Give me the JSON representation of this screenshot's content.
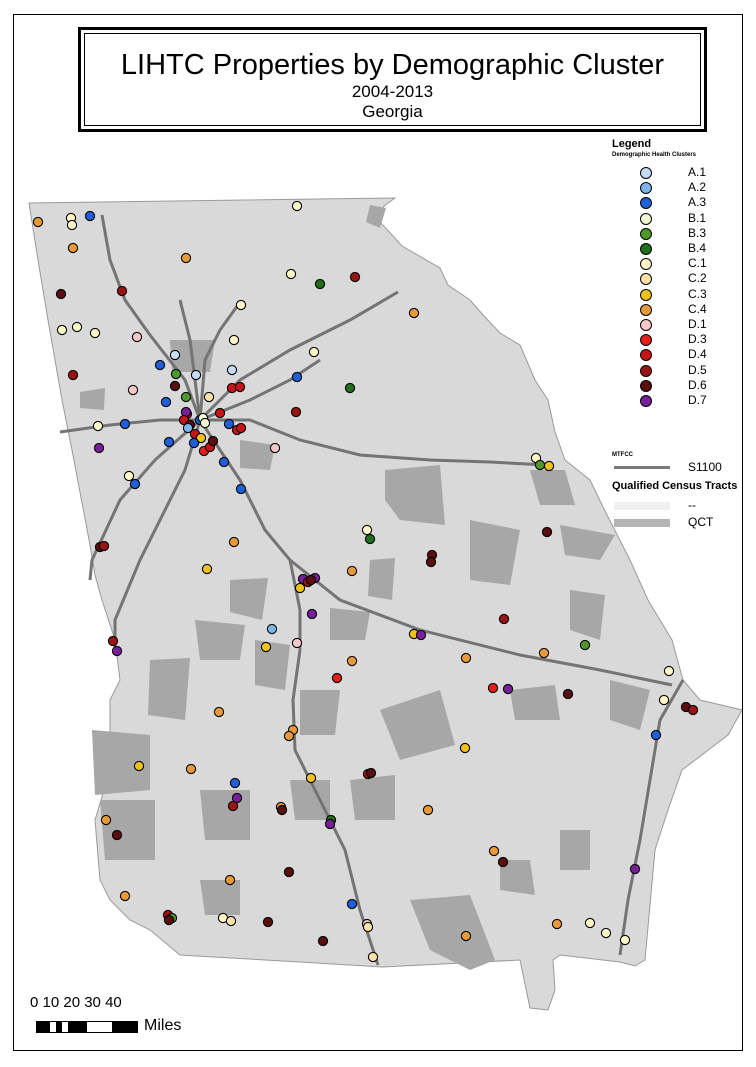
{
  "title": "LIHTC Properties by Demographic Cluster",
  "subtitle": "2004-2013",
  "region": "Georgia",
  "legend": {
    "title": "Legend",
    "subtitle": "Demographic Health Clusters",
    "items": [
      {
        "label": "A.1",
        "color": "#c6dbf5"
      },
      {
        "label": "A.2",
        "color": "#7fb4ea"
      },
      {
        "label": "A.3",
        "color": "#1f5fd8"
      },
      {
        "label": "B.1",
        "color": "#f2f8d2"
      },
      {
        "label": "B.3",
        "color": "#4d9a2a"
      },
      {
        "label": "B.4",
        "color": "#1f6f1d"
      },
      {
        "label": "C.1",
        "color": "#fff7c8"
      },
      {
        "label": "C.2",
        "color": "#fde2a8"
      },
      {
        "label": "C.3",
        "color": "#f0c21d"
      },
      {
        "label": "C.4",
        "color": "#e89a3a"
      },
      {
        "label": "D.1",
        "color": "#f8c8c8"
      },
      {
        "label": "D.3",
        "color": "#e0201c"
      },
      {
        "label": "D.4",
        "color": "#c81418"
      },
      {
        "label": "D.5",
        "color": "#9a1414"
      },
      {
        "label": "D.6",
        "color": "#5a0f10"
      },
      {
        "label": "D.7",
        "color": "#7a1f9a"
      }
    ],
    "mtfcc_label": "MTFCC",
    "road_label": "S1100",
    "qct_title": "Qualified Census Tracts",
    "qct_none_label": "--",
    "qct_label": "QCT"
  },
  "scale": {
    "ticks": "0  10 20 30 40",
    "unit": "Miles"
  },
  "colors": {
    "state_fill": "#d9d9d9",
    "qct_fill": "#a7a7a7",
    "road": "#747474"
  },
  "properties": [
    [
      "C.4",
      38,
      222
    ],
    [
      "C.1",
      71,
      218
    ],
    [
      "C.1",
      72,
      225
    ],
    [
      "A.3",
      90,
      216
    ],
    [
      "C.1",
      297,
      206
    ],
    [
      "C.4",
      73,
      248
    ],
    [
      "C.4",
      186,
      258
    ],
    [
      "C.1",
      291,
      274
    ],
    [
      "B.4",
      320,
      284
    ],
    [
      "D.5",
      355,
      277
    ],
    [
      "D.6",
      61,
      294
    ],
    [
      "D.5",
      122,
      291
    ],
    [
      "C.1",
      241,
      305
    ],
    [
      "C.4",
      414,
      313
    ],
    [
      "C.1",
      62,
      330
    ],
    [
      "C.1",
      77,
      327
    ],
    [
      "C.1",
      95,
      333
    ],
    [
      "D.1",
      137,
      337
    ],
    [
      "C.1",
      234,
      340
    ],
    [
      "C.1",
      314,
      352
    ],
    [
      "A.1",
      175,
      355
    ],
    [
      "A.3",
      160,
      365
    ],
    [
      "A.1",
      196,
      375
    ],
    [
      "A.1",
      232,
      370
    ],
    [
      "A.3",
      297,
      377
    ],
    [
      "D.5",
      73,
      375
    ],
    [
      "B.3",
      176,
      374
    ],
    [
      "D.6",
      175,
      386
    ],
    [
      "D.4",
      232,
      388
    ],
    [
      "D.4",
      240,
      387
    ],
    [
      "B.4",
      350,
      388
    ],
    [
      "D.1",
      133,
      390
    ],
    [
      "A.3",
      166,
      402
    ],
    [
      "B.3",
      186,
      397
    ],
    [
      "C.2",
      209,
      397
    ],
    [
      "D.5",
      296,
      412
    ],
    [
      "D.4",
      187,
      414
    ],
    [
      "D.7",
      186,
      412
    ],
    [
      "A.3",
      200,
      420
    ],
    [
      "D.4",
      220,
      413
    ],
    [
      "B.1",
      203,
      418
    ],
    [
      "D.4",
      184,
      420
    ],
    [
      "D.6",
      190,
      425
    ],
    [
      "B.1",
      205,
      423
    ],
    [
      "C.1",
      98,
      426
    ],
    [
      "A.3",
      125,
      424
    ],
    [
      "A.3",
      229,
      424
    ],
    [
      "D.4",
      237,
      430
    ],
    [
      "D.4",
      241,
      428
    ],
    [
      "A.2",
      188,
      428
    ],
    [
      "A.3",
      169,
      442
    ],
    [
      "D.4",
      195,
      434
    ],
    [
      "C.3",
      201,
      438
    ],
    [
      "D.3",
      204,
      451
    ],
    [
      "D.4",
      210,
      447
    ],
    [
      "A.3",
      194,
      443
    ],
    [
      "D.6",
      213,
      441
    ],
    [
      "D.1",
      275,
      448
    ],
    [
      "D.7",
      99,
      448
    ],
    [
      "A.3",
      224,
      462
    ],
    [
      "C.1",
      129,
      476
    ],
    [
      "A.3",
      135,
      484
    ],
    [
      "A.3",
      241,
      489
    ],
    [
      "C.1",
      536,
      458
    ],
    [
      "B.3",
      540,
      465
    ],
    [
      "C.3",
      549,
      466
    ],
    [
      "C.1",
      367,
      530
    ],
    [
      "B.4",
      370,
      539
    ],
    [
      "D.6",
      547,
      532
    ],
    [
      "D.6",
      100,
      547
    ],
    [
      "D.5",
      104,
      546
    ],
    [
      "C.4",
      234,
      542
    ],
    [
      "D.6",
      432,
      555
    ],
    [
      "D.6",
      431,
      562
    ],
    [
      "C.3",
      207,
      569
    ],
    [
      "C.4",
      352,
      571
    ],
    [
      "D.7",
      303,
      579
    ],
    [
      "D.5",
      308,
      582
    ],
    [
      "D.7",
      315,
      578
    ],
    [
      "D.6",
      311,
      580
    ],
    [
      "C.3",
      300,
      588
    ],
    [
      "D.7",
      312,
      614
    ],
    [
      "D.5",
      504,
      619
    ],
    [
      "A.2",
      272,
      629
    ],
    [
      "C.3",
      266,
      647
    ],
    [
      "D.1",
      297,
      643
    ],
    [
      "C.3",
      414,
      634
    ],
    [
      "D.7",
      421,
      635
    ],
    [
      "B.3",
      585,
      645
    ],
    [
      "D.7",
      117,
      651
    ],
    [
      "D.5",
      113,
      641
    ],
    [
      "C.4",
      466,
      658
    ],
    [
      "C.4",
      544,
      653
    ],
    [
      "C.4",
      352,
      661
    ],
    [
      "C.1",
      669,
      671
    ],
    [
      "D.3",
      337,
      678
    ],
    [
      "D.3",
      493,
      688
    ],
    [
      "D.7",
      508,
      689
    ],
    [
      "D.6",
      568,
      694
    ],
    [
      "C.1",
      664,
      700
    ],
    [
      "D.6",
      686,
      707
    ],
    [
      "D.5",
      693,
      710
    ],
    [
      "C.4",
      219,
      712
    ],
    [
      "C.4",
      293,
      730
    ],
    [
      "C.4",
      289,
      736
    ],
    [
      "A.3",
      656,
      735
    ],
    [
      "C.3",
      465,
      748
    ],
    [
      "C.3",
      139,
      766
    ],
    [
      "C.4",
      191,
      769
    ],
    [
      "D.5",
      368,
      774
    ],
    [
      "D.6",
      371,
      773
    ],
    [
      "A.3",
      235,
      783
    ],
    [
      "D.7",
      237,
      798
    ],
    [
      "D.5",
      233,
      806
    ],
    [
      "C.4",
      281,
      807
    ],
    [
      "D.6",
      282,
      810
    ],
    [
      "C.3",
      311,
      778
    ],
    [
      "C.4",
      428,
      810
    ],
    [
      "C.4",
      106,
      820
    ],
    [
      "D.6",
      117,
      835
    ],
    [
      "B.4",
      331,
      820
    ],
    [
      "D.7",
      330,
      824
    ],
    [
      "C.4",
      494,
      851
    ],
    [
      "D.6",
      503,
      862
    ],
    [
      "D.7",
      635,
      869
    ],
    [
      "D.6",
      289,
      872
    ],
    [
      "C.4",
      230,
      880
    ],
    [
      "C.4",
      125,
      896
    ],
    [
      "A.3",
      352,
      904
    ],
    [
      "D.5",
      168,
      915
    ],
    [
      "B.3",
      172,
      918
    ],
    [
      "D.6",
      169,
      920
    ],
    [
      "C.1",
      223,
      918
    ],
    [
      "C.2",
      231,
      921
    ],
    [
      "D.6",
      268,
      922
    ],
    [
      "D.1",
      367,
      924
    ],
    [
      "C.2",
      368,
      927
    ],
    [
      "C.4",
      557,
      924
    ],
    [
      "C.1",
      590,
      923
    ],
    [
      "C.1",
      606,
      933
    ],
    [
      "D.6",
      323,
      941
    ],
    [
      "C.4",
      466,
      936
    ],
    [
      "C.1",
      625,
      940
    ],
    [
      "C.2",
      373,
      957
    ]
  ]
}
